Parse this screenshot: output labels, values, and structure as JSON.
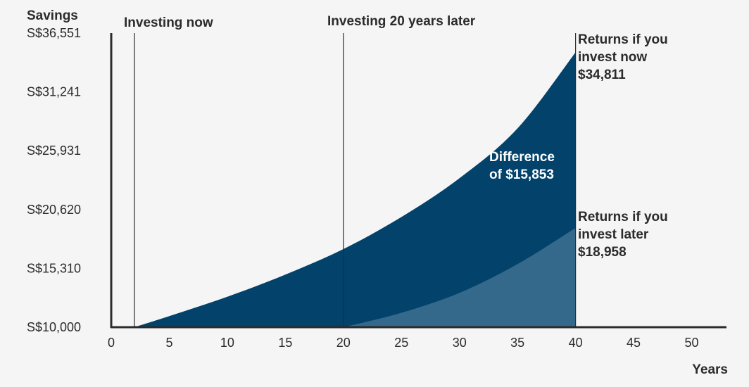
{
  "chart_data": {
    "type": "area",
    "title": "",
    "ylabel": "Savings",
    "xlabel": "Years",
    "x_ticks": [
      0,
      5,
      10,
      15,
      20,
      25,
      30,
      35,
      40,
      45,
      50
    ],
    "y_ticks": [
      10000,
      15310,
      20620,
      25931,
      31241,
      36551
    ],
    "y_tick_labels": [
      "S$10,000",
      "S$15,310",
      "S$20,620",
      "S$25,931",
      "S$31,241",
      "S$36,551"
    ],
    "xlim": [
      0,
      53
    ],
    "ylim": [
      10000,
      36551
    ],
    "grid": false,
    "series": [
      {
        "name": "Returns if you invest now",
        "color": "#02426b",
        "x": [
          2,
          5,
          10,
          15,
          20,
          25,
          30,
          35,
          40
        ],
        "y": [
          10000,
          11000,
          12750,
          14750,
          17050,
          19950,
          23450,
          27950,
          34811
        ]
      },
      {
        "name": "Returns if you invest later",
        "color": "#34698c",
        "x": [
          20,
          25,
          30,
          35,
          40
        ],
        "y": [
          10000,
          11300,
          13100,
          15700,
          18958
        ]
      }
    ],
    "markers": [
      {
        "x": 2,
        "label": "Investing now"
      },
      {
        "x": 20,
        "label": "Investing 20 years later"
      },
      {
        "x": 40,
        "label": ""
      }
    ],
    "annotations": {
      "now": [
        "Returns if you",
        "invest now",
        "$34,811"
      ],
      "later": [
        "Returns if you",
        "invest later",
        "$18,958"
      ],
      "difference": [
        "Difference",
        "of $15,853"
      ]
    }
  }
}
